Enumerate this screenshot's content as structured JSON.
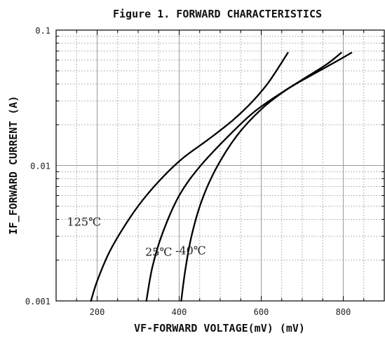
{
  "chart_data": {
    "type": "line",
    "title": "Figure 1. FORWARD CHARACTERISTICS",
    "xlabel": "VF-FORWARD VOLTAGE(mV) (mV)",
    "ylabel": "IF_FORWARD CURRENT (A)",
    "xlim": [
      100,
      900
    ],
    "ylim": [
      0.001,
      0.1
    ],
    "yscale": "log",
    "grid": true,
    "x_ticks": [
      200,
      400,
      600,
      800
    ],
    "y_ticks": [
      0.001,
      0.01,
      0.1
    ],
    "x_tick_labels": [
      "200",
      "400",
      "600",
      "800"
    ],
    "y_tick_labels": [
      "0.001",
      "0.01",
      "0.1"
    ],
    "series": [
      {
        "name": "125℃",
        "x": [
          185,
          200,
          230,
          270,
          310,
          360,
          410,
          470,
          530,
          580,
          620,
          665
        ],
        "y": [
          0.001,
          0.0014,
          0.0023,
          0.0037,
          0.0055,
          0.0082,
          0.0114,
          0.0155,
          0.0215,
          0.03,
          0.042,
          0.068
        ]
      },
      {
        "name": "25℃",
        "x": [
          320,
          335,
          360,
          400,
          450,
          520,
          580,
          640,
          700,
          760,
          795
        ],
        "y": [
          0.001,
          0.0018,
          0.0032,
          0.006,
          0.0098,
          0.0165,
          0.0245,
          0.033,
          0.043,
          0.056,
          0.068
        ]
      },
      {
        "name": "-40℃",
        "x": [
          405,
          415,
          430,
          455,
          490,
          540,
          600,
          660,
          720,
          780,
          820
        ],
        "y": [
          0.001,
          0.0017,
          0.003,
          0.0055,
          0.0095,
          0.0165,
          0.026,
          0.036,
          0.046,
          0.058,
          0.068
        ]
      }
    ],
    "annotations": [
      {
        "text": "125℃",
        "x": 168,
        "y": 0.0036
      },
      {
        "text": "25℃",
        "x": 350,
        "y": 0.00215
      },
      {
        "text": "-40℃",
        "x": 428,
        "y": 0.0022
      }
    ]
  }
}
